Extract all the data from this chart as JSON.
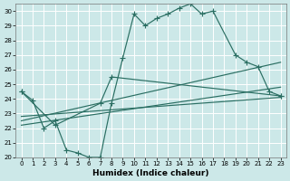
{
  "background_color": "#cce8e8",
  "grid_color": "#ffffff",
  "line_color": "#2a6e62",
  "xlabel": "Humidex (Indice chaleur)",
  "xlim": [
    0,
    23
  ],
  "ylim": [
    20,
    30.5
  ],
  "yticks": [
    20,
    21,
    22,
    23,
    24,
    25,
    26,
    27,
    28,
    29,
    30
  ],
  "xticks": [
    0,
    1,
    2,
    3,
    4,
    5,
    6,
    7,
    8,
    9,
    10,
    11,
    12,
    13,
    14,
    15,
    16,
    17,
    18,
    19,
    20,
    21,
    22,
    23
  ],
  "curve1_x": [
    0,
    1,
    2,
    3,
    4,
    5,
    6,
    7,
    8,
    9,
    10,
    11,
    12,
    13,
    14,
    15,
    16,
    17,
    19,
    20,
    21,
    22,
    23
  ],
  "curve1_y": [
    24.5,
    23.9,
    22.0,
    22.5,
    20.5,
    20.3,
    20.0,
    20.0,
    23.7,
    26.8,
    29.8,
    29.0,
    29.5,
    29.8,
    30.2,
    30.5,
    29.8,
    30.0,
    27.0,
    26.5,
    26.2,
    24.5,
    24.2
  ],
  "curve2_x": [
    0,
    3,
    7,
    8,
    23
  ],
  "curve2_y": [
    24.5,
    22.2,
    23.7,
    25.5,
    24.2
  ],
  "line1_x": [
    0,
    23
  ],
  "line1_y": [
    22.5,
    26.5
  ],
  "line2_x": [
    0,
    23
  ],
  "line2_y": [
    22.8,
    24.1
  ],
  "line3_x": [
    0,
    23
  ],
  "line3_y": [
    22.2,
    24.8
  ]
}
